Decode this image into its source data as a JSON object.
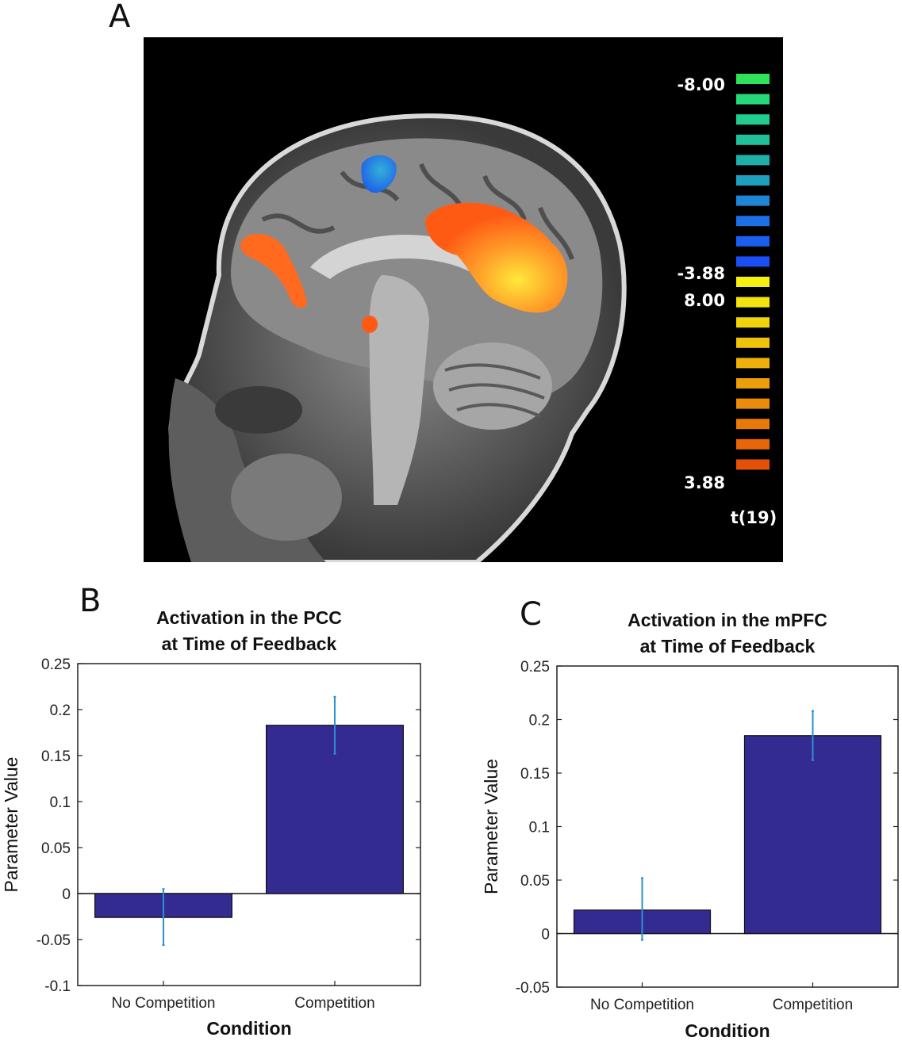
{
  "panels": {
    "a": "A",
    "b": "B",
    "c": "C"
  },
  "colorbar": {
    "labels": [
      "-8.00",
      "-3.88",
      "8.00",
      "3.88",
      "t(19)"
    ],
    "negative_colors": [
      "#2ee35a",
      "#26d87a",
      "#22cc8e",
      "#1fc09a",
      "#1fb0aa",
      "#1f9fbf",
      "#1e86d6",
      "#1d6fe6",
      "#1b5ff0",
      "#1a4ff5"
    ],
    "positive_colors": [
      "#f5f00f",
      "#f2e30e",
      "#f0d20d",
      "#efc20c",
      "#eeb00b",
      "#ec9f0a",
      "#ea8c0a",
      "#e87a09",
      "#e66608",
      "#e45108"
    ]
  },
  "chart_data": [
    {
      "type": "bar",
      "title": "Activation in the PCC at Time of Feedback",
      "title_lines": [
        "Activation in the PCC",
        "at Time of Feedback"
      ],
      "xlabel": "Condition",
      "ylabel": "Parameter Value",
      "categories": [
        "No Competition",
        "Competition"
      ],
      "values": [
        -0.026,
        0.183
      ],
      "error_low": [
        -0.056,
        0.152
      ],
      "error_high": [
        0.005,
        0.214
      ],
      "ylim": [
        -0.1,
        0.25
      ],
      "yticks": [
        "-0.1",
        "-0.05",
        "0",
        "0.05",
        "0.1",
        "0.15",
        "0.2",
        "0.25"
      ],
      "bar_color": "#332b8f",
      "error_color": "#2e8fd1",
      "grid": false
    },
    {
      "type": "bar",
      "title": "Activation in the mPFC at Time of Feedback",
      "title_lines": [
        "Activation in the mPFC",
        "at Time of Feedback"
      ],
      "xlabel": "Condition",
      "ylabel": "Parameter Value",
      "categories": [
        "No Competition",
        "Competition"
      ],
      "values": [
        0.022,
        0.185
      ],
      "error_low": [
        -0.006,
        0.162
      ],
      "error_high": [
        0.052,
        0.208
      ],
      "ylim": [
        -0.05,
        0.25
      ],
      "yticks": [
        "-0.05",
        "0",
        "0.05",
        "0.1",
        "0.15",
        "0.2",
        "0.25"
      ],
      "bar_color": "#332b8f",
      "error_color": "#2e8fd1",
      "grid": false
    }
  ]
}
